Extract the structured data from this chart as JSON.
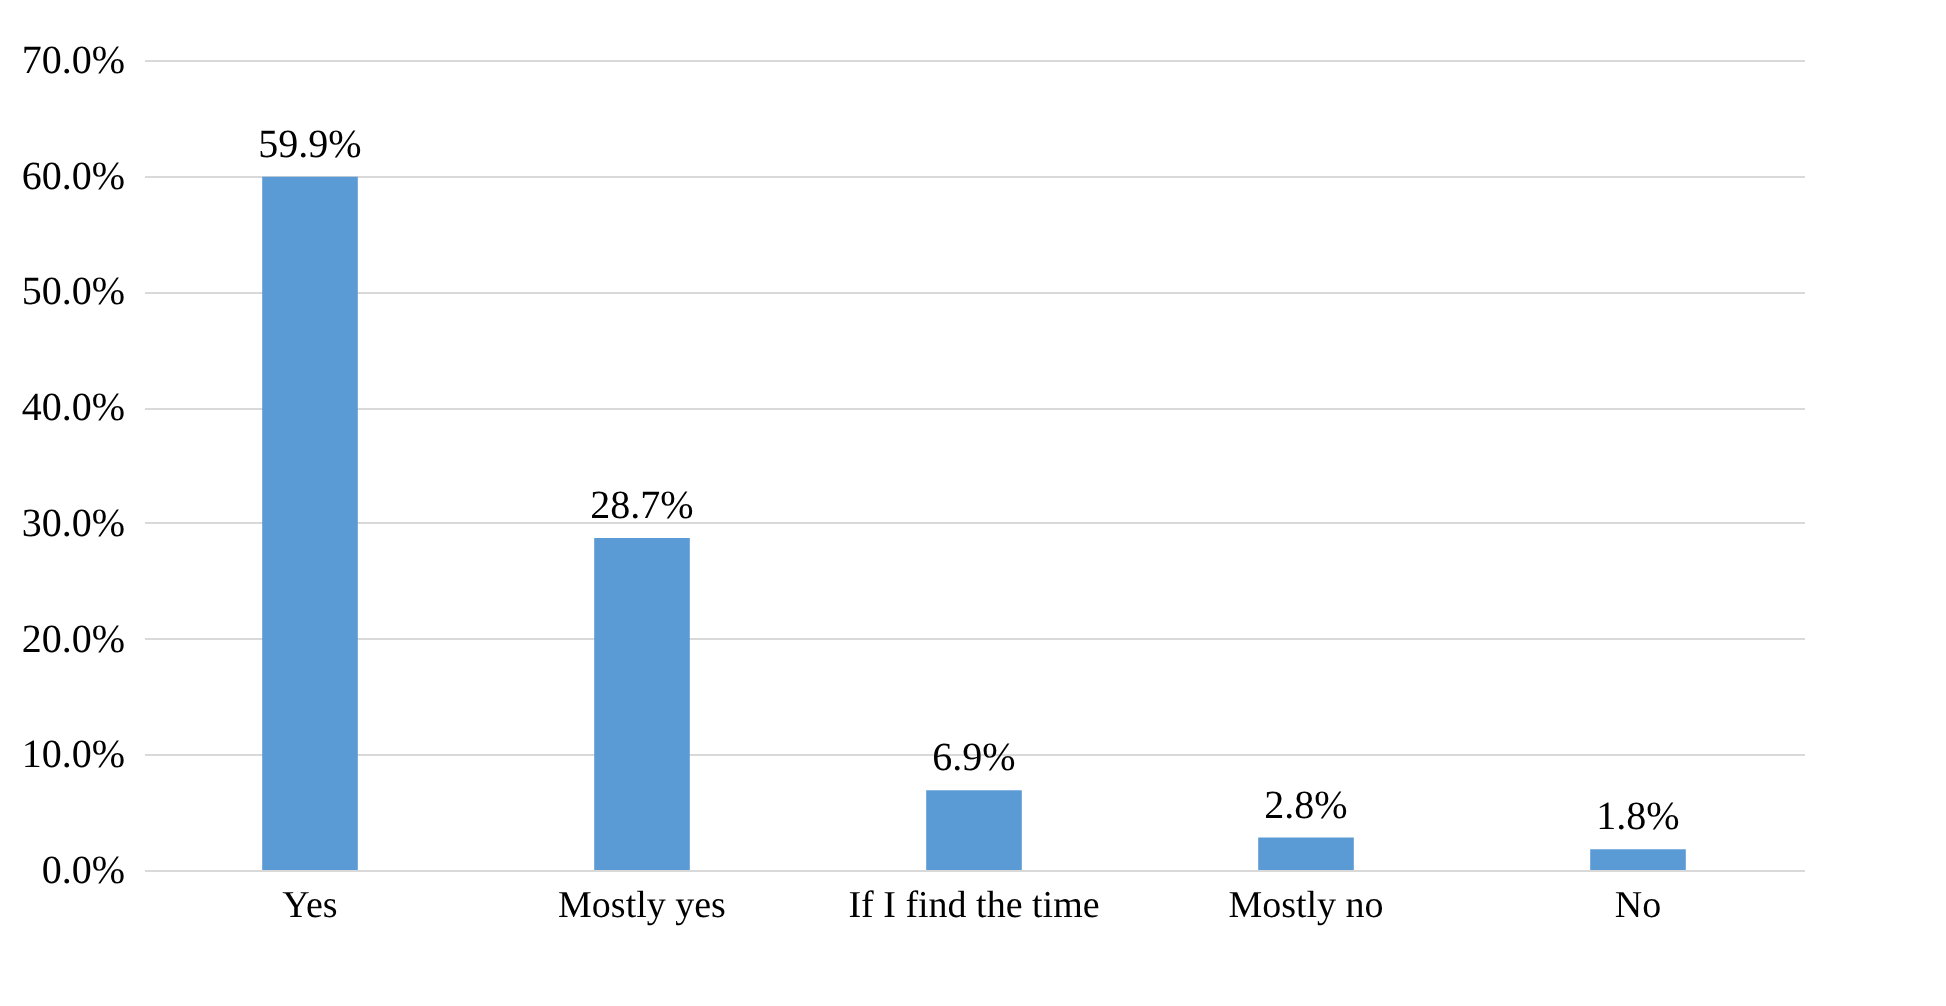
{
  "chart_data": {
    "type": "bar",
    "categories": [
      "Yes",
      "Mostly yes",
      "If I find the time",
      "Mostly no",
      "No"
    ],
    "values": [
      59.9,
      28.7,
      6.9,
      2.8,
      1.8
    ],
    "value_labels": [
      "59.9%",
      "28.7%",
      "6.9%",
      "2.8%",
      "1.8%"
    ],
    "color": "#5b9bd5",
    "ylim": [
      0,
      70
    ],
    "yticks": [
      {
        "value": 0,
        "label": "0.0%"
      },
      {
        "value": 10,
        "label": "10.0%"
      },
      {
        "value": 20,
        "label": "20.0%"
      },
      {
        "value": 30,
        "label": "30.0%"
      },
      {
        "value": 40,
        "label": "40.0%"
      },
      {
        "value": 50,
        "label": "50.0%"
      },
      {
        "value": 60,
        "label": "60.0%"
      },
      {
        "value": 70,
        "label": "70.0%"
      }
    ],
    "grid": "y"
  }
}
